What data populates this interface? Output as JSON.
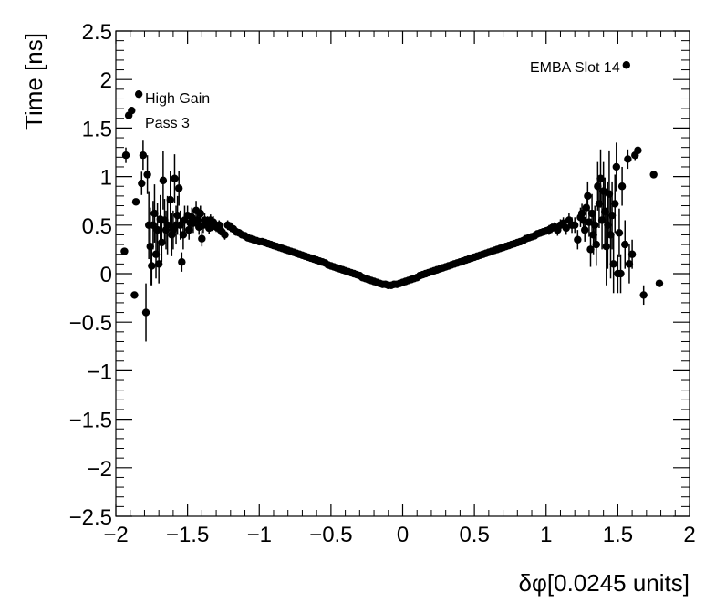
{
  "chart_data": {
    "type": "scatter",
    "xlabel": "δφ[0.0245 units]",
    "ylabel": "Time [ns]",
    "xlim": [
      -2,
      2
    ],
    "ylim": [
      -2.5,
      2.5
    ],
    "x_ticks": [
      -2,
      -1.5,
      -1,
      -0.5,
      0,
      0.5,
      1,
      1.5,
      2
    ],
    "y_ticks": [
      -2.5,
      -2,
      -1.5,
      -1,
      -0.5,
      0,
      0.5,
      1,
      1.5,
      2,
      2.5
    ],
    "x_tick_labels": [
      "−2",
      "−1.5",
      "−1",
      "−0.5",
      "0",
      "0.5",
      "1",
      "1.5",
      "2"
    ],
    "y_tick_labels": [
      "−2.5",
      "−2",
      "−1.5",
      "−1",
      "−0.5",
      "0",
      "0.5",
      "1",
      "1.5",
      "2",
      "2.5"
    ],
    "annotations": {
      "gain": "High Gain",
      "pass": "Pass 3",
      "slot": "EMBA Slot 14"
    },
    "grid": false,
    "legend": "none",
    "marker_color": "#000000",
    "points": [
      [
        -1.94,
        0.23,
        0.0
      ],
      [
        -1.93,
        1.22,
        0.08
      ],
      [
        -1.91,
        1.63,
        0.0
      ],
      [
        -1.89,
        1.68,
        0.0
      ],
      [
        -1.87,
        -0.22,
        0.0
      ],
      [
        -1.86,
        0.74,
        0.0
      ],
      [
        -1.84,
        1.85,
        0.0
      ],
      [
        -1.82,
        0.93,
        0.12
      ],
      [
        -1.81,
        1.22,
        0.15
      ],
      [
        -1.79,
        -0.4,
        0.3
      ],
      [
        -1.78,
        1.02,
        0.2
      ],
      [
        -1.77,
        0.5,
        0.35
      ],
      [
        -1.76,
        0.28,
        0.4
      ],
      [
        -1.75,
        0.08,
        0.2
      ],
      [
        -1.74,
        0.5,
        0.25
      ],
      [
        -1.73,
        0.62,
        0.3
      ],
      [
        -1.72,
        0.2,
        0.25
      ],
      [
        -1.71,
        0.45,
        0.28
      ],
      [
        -1.7,
        0.1,
        0.2
      ],
      [
        -1.69,
        0.56,
        0.25
      ],
      [
        -1.68,
        0.32,
        0.2
      ],
      [
        -1.67,
        0.96,
        0.3
      ],
      [
        -1.66,
        0.55,
        0.22
      ],
      [
        -1.65,
        0.45,
        0.2
      ],
      [
        -1.64,
        0.5,
        0.3
      ],
      [
        -1.62,
        0.76,
        0.3
      ],
      [
        -1.61,
        0.4,
        0.22
      ],
      [
        -1.6,
        0.45,
        0.2
      ],
      [
        -1.59,
        0.98,
        0.25
      ],
      [
        -1.58,
        0.5,
        0.2
      ],
      [
        -1.57,
        0.6,
        0.2
      ],
      [
        -1.56,
        0.88,
        0.18
      ],
      [
        -1.55,
        0.5,
        0.15
      ],
      [
        -1.54,
        0.12,
        0.1
      ],
      [
        -1.53,
        0.4,
        0.15
      ],
      [
        -1.52,
        0.55,
        0.15
      ],
      [
        -1.5,
        0.6,
        0.1
      ],
      [
        -1.49,
        0.45,
        0.1
      ],
      [
        -1.48,
        0.52,
        0.1
      ],
      [
        -1.47,
        0.58,
        0.1
      ],
      [
        -1.46,
        0.52,
        0.1
      ],
      [
        -1.44,
        0.65,
        0.1
      ],
      [
        -1.43,
        0.55,
        0.08
      ],
      [
        -1.42,
        0.48,
        0.08
      ],
      [
        -1.41,
        0.62,
        0.08
      ],
      [
        -1.4,
        0.36,
        0.08
      ],
      [
        -1.39,
        0.5,
        0.08
      ],
      [
        -1.38,
        0.55,
        0.07
      ],
      [
        -1.36,
        0.52,
        0.07
      ],
      [
        -1.35,
        0.47,
        0.06
      ],
      [
        -1.34,
        0.55,
        0.06
      ],
      [
        -1.33,
        0.5,
        0.06
      ],
      [
        -1.32,
        0.53,
        0.06
      ],
      [
        -1.3,
        0.48,
        0.05
      ],
      [
        -1.28,
        0.5,
        0.05
      ],
      [
        -1.27,
        0.45,
        0.05
      ],
      [
        -1.26,
        0.43,
        0.05
      ],
      [
        -1.24,
        0.4,
        0.05
      ],
      [
        -1.22,
        0.5,
        0.05
      ],
      [
        -1.2,
        0.48,
        0.05
      ],
      [
        -1.18,
        0.46,
        0.04
      ],
      [
        -1.16,
        0.43,
        0.04
      ],
      [
        -1.14,
        0.42,
        0.04
      ],
      [
        -1.12,
        0.4,
        0.03
      ],
      [
        -1.1,
        0.39,
        0.03
      ],
      [
        -1.08,
        0.37,
        0.03
      ],
      [
        -1.06,
        0.36,
        0.03
      ],
      [
        -1.04,
        0.35,
        0.0
      ],
      [
        -1.02,
        0.34,
        0.0
      ],
      [
        -1.0,
        0.33,
        0.0
      ],
      [
        -0.98,
        0.33,
        0.0
      ],
      [
        -0.96,
        0.32,
        0.0
      ],
      [
        -0.94,
        0.31,
        0.0
      ],
      [
        -0.92,
        0.3,
        0.0
      ],
      [
        -0.9,
        0.29,
        0.0
      ],
      [
        -0.88,
        0.28,
        0.0
      ],
      [
        -0.86,
        0.27,
        0.0
      ],
      [
        -0.84,
        0.26,
        0.0
      ],
      [
        -0.82,
        0.25,
        0.0
      ],
      [
        -0.8,
        0.24,
        0.0
      ],
      [
        -0.78,
        0.23,
        0.0
      ],
      [
        -0.76,
        0.22,
        0.0
      ],
      [
        -0.74,
        0.21,
        0.0
      ],
      [
        -0.72,
        0.2,
        0.0
      ],
      [
        -0.7,
        0.19,
        0.0
      ],
      [
        -0.68,
        0.18,
        0.0
      ],
      [
        -0.66,
        0.17,
        0.0
      ],
      [
        -0.64,
        0.16,
        0.0
      ],
      [
        -0.62,
        0.15,
        0.0
      ],
      [
        -0.6,
        0.14,
        0.0
      ],
      [
        -0.58,
        0.13,
        0.0
      ],
      [
        -0.56,
        0.12,
        0.0
      ],
      [
        -0.54,
        0.11,
        0.0
      ],
      [
        -0.52,
        0.09,
        0.0
      ],
      [
        -0.5,
        0.08,
        0.0
      ],
      [
        -0.48,
        0.07,
        0.0
      ],
      [
        -0.46,
        0.06,
        0.0
      ],
      [
        -0.44,
        0.05,
        0.0
      ],
      [
        -0.42,
        0.04,
        0.0
      ],
      [
        -0.4,
        0.03,
        0.0
      ],
      [
        -0.38,
        0.02,
        0.0
      ],
      [
        -0.36,
        0.01,
        0.0
      ],
      [
        -0.34,
        0.0,
        0.0
      ],
      [
        -0.32,
        -0.01,
        0.0
      ],
      [
        -0.3,
        -0.02,
        0.0
      ],
      [
        -0.28,
        -0.04,
        0.0
      ],
      [
        -0.26,
        -0.05,
        0.0
      ],
      [
        -0.24,
        -0.06,
        0.0
      ],
      [
        -0.22,
        -0.07,
        0.0
      ],
      [
        -0.2,
        -0.08,
        0.0
      ],
      [
        -0.18,
        -0.09,
        0.0
      ],
      [
        -0.16,
        -0.1,
        0.0
      ],
      [
        -0.14,
        -0.11,
        0.0
      ],
      [
        -0.12,
        -0.11,
        0.0
      ],
      [
        -0.1,
        -0.12,
        0.0
      ],
      [
        -0.08,
        -0.12,
        0.0
      ],
      [
        -0.06,
        -0.11,
        0.0
      ],
      [
        -0.04,
        -0.11,
        0.0
      ],
      [
        -0.02,
        -0.1,
        0.0
      ],
      [
        0.0,
        -0.09,
        0.0
      ],
      [
        0.02,
        -0.08,
        0.0
      ],
      [
        0.04,
        -0.07,
        0.0
      ],
      [
        0.06,
        -0.06,
        0.0
      ],
      [
        0.08,
        -0.05,
        0.0
      ],
      [
        0.1,
        -0.04,
        0.0
      ],
      [
        0.12,
        -0.02,
        0.0
      ],
      [
        0.14,
        -0.01,
        0.0
      ],
      [
        0.16,
        0.0,
        0.0
      ],
      [
        0.18,
        0.01,
        0.0
      ],
      [
        0.2,
        0.02,
        0.0
      ],
      [
        0.22,
        0.03,
        0.0
      ],
      [
        0.24,
        0.04,
        0.0
      ],
      [
        0.26,
        0.05,
        0.0
      ],
      [
        0.28,
        0.06,
        0.0
      ],
      [
        0.3,
        0.07,
        0.0
      ],
      [
        0.32,
        0.08,
        0.0
      ],
      [
        0.34,
        0.09,
        0.0
      ],
      [
        0.36,
        0.1,
        0.0
      ],
      [
        0.38,
        0.11,
        0.0
      ],
      [
        0.4,
        0.12,
        0.0
      ],
      [
        0.42,
        0.13,
        0.0
      ],
      [
        0.44,
        0.14,
        0.0
      ],
      [
        0.46,
        0.15,
        0.0
      ],
      [
        0.48,
        0.16,
        0.0
      ],
      [
        0.5,
        0.17,
        0.0
      ],
      [
        0.52,
        0.18,
        0.0
      ],
      [
        0.54,
        0.19,
        0.0
      ],
      [
        0.56,
        0.2,
        0.0
      ],
      [
        0.58,
        0.21,
        0.0
      ],
      [
        0.6,
        0.22,
        0.0
      ],
      [
        0.62,
        0.23,
        0.0
      ],
      [
        0.64,
        0.24,
        0.0
      ],
      [
        0.66,
        0.25,
        0.0
      ],
      [
        0.68,
        0.26,
        0.0
      ],
      [
        0.7,
        0.27,
        0.0
      ],
      [
        0.72,
        0.28,
        0.0
      ],
      [
        0.74,
        0.29,
        0.0
      ],
      [
        0.76,
        0.3,
        0.0
      ],
      [
        0.78,
        0.31,
        0.0
      ],
      [
        0.8,
        0.32,
        0.0
      ],
      [
        0.82,
        0.33,
        0.0
      ],
      [
        0.84,
        0.34,
        0.0
      ],
      [
        0.86,
        0.36,
        0.0
      ],
      [
        0.88,
        0.37,
        0.0
      ],
      [
        0.9,
        0.38,
        0.03
      ],
      [
        0.92,
        0.39,
        0.03
      ],
      [
        0.94,
        0.41,
        0.03
      ],
      [
        0.96,
        0.42,
        0.04
      ],
      [
        0.98,
        0.43,
        0.04
      ],
      [
        1.0,
        0.44,
        0.04
      ],
      [
        1.02,
        0.45,
        0.05
      ],
      [
        1.04,
        0.47,
        0.05
      ],
      [
        1.06,
        0.48,
        0.05
      ],
      [
        1.08,
        0.45,
        0.06
      ],
      [
        1.1,
        0.5,
        0.06
      ],
      [
        1.12,
        0.52,
        0.06
      ],
      [
        1.14,
        0.47,
        0.07
      ],
      [
        1.16,
        0.55,
        0.07
      ],
      [
        1.18,
        0.5,
        0.08
      ],
      [
        1.2,
        0.5,
        0.08
      ],
      [
        1.22,
        0.35,
        0.1
      ],
      [
        1.24,
        0.58,
        0.1
      ],
      [
        1.25,
        0.62,
        0.1
      ],
      [
        1.26,
        0.55,
        0.12
      ],
      [
        1.27,
        0.45,
        0.12
      ],
      [
        1.28,
        0.68,
        0.15
      ],
      [
        1.29,
        0.8,
        0.15
      ],
      [
        1.3,
        0.53,
        0.15
      ],
      [
        1.31,
        0.25,
        0.18
      ],
      [
        1.32,
        0.62,
        0.2
      ],
      [
        1.33,
        0.4,
        0.2
      ],
      [
        1.34,
        0.5,
        0.2
      ],
      [
        1.35,
        0.3,
        0.22
      ],
      [
        1.36,
        0.9,
        0.25
      ],
      [
        1.37,
        0.72,
        0.25
      ],
      [
        1.38,
        0.98,
        0.3
      ],
      [
        1.39,
        0.55,
        0.3
      ],
      [
        1.4,
        0.85,
        0.3
      ],
      [
        1.41,
        0.64,
        0.35
      ],
      [
        1.42,
        0.28,
        0.4
      ],
      [
        1.43,
        0.5,
        0.45
      ],
      [
        1.44,
        0.82,
        0.45
      ],
      [
        1.45,
        0.4,
        0.45
      ],
      [
        1.46,
        0.6,
        0.35
      ],
      [
        1.47,
        0.1,
        0.3
      ],
      [
        1.48,
        0.72,
        0.3
      ],
      [
        1.49,
        1.1,
        0.25
      ],
      [
        1.5,
        0.0,
        0.2
      ],
      [
        1.51,
        0.42,
        0.25
      ],
      [
        1.52,
        0.0,
        0.2
      ],
      [
        1.53,
        0.9,
        0.2
      ],
      [
        1.55,
        0.3,
        0.25
      ],
      [
        1.56,
        2.15,
        0.0
      ],
      [
        1.57,
        1.18,
        0.1
      ],
      [
        1.58,
        0.1,
        0.2
      ],
      [
        1.6,
        0.2,
        0.15
      ],
      [
        1.62,
        1.22,
        0.05
      ],
      [
        1.64,
        1.27,
        0.0
      ],
      [
        1.68,
        -0.22,
        0.1
      ],
      [
        1.75,
        1.02,
        0.0
      ],
      [
        1.79,
        -0.1,
        0.0
      ]
    ]
  }
}
